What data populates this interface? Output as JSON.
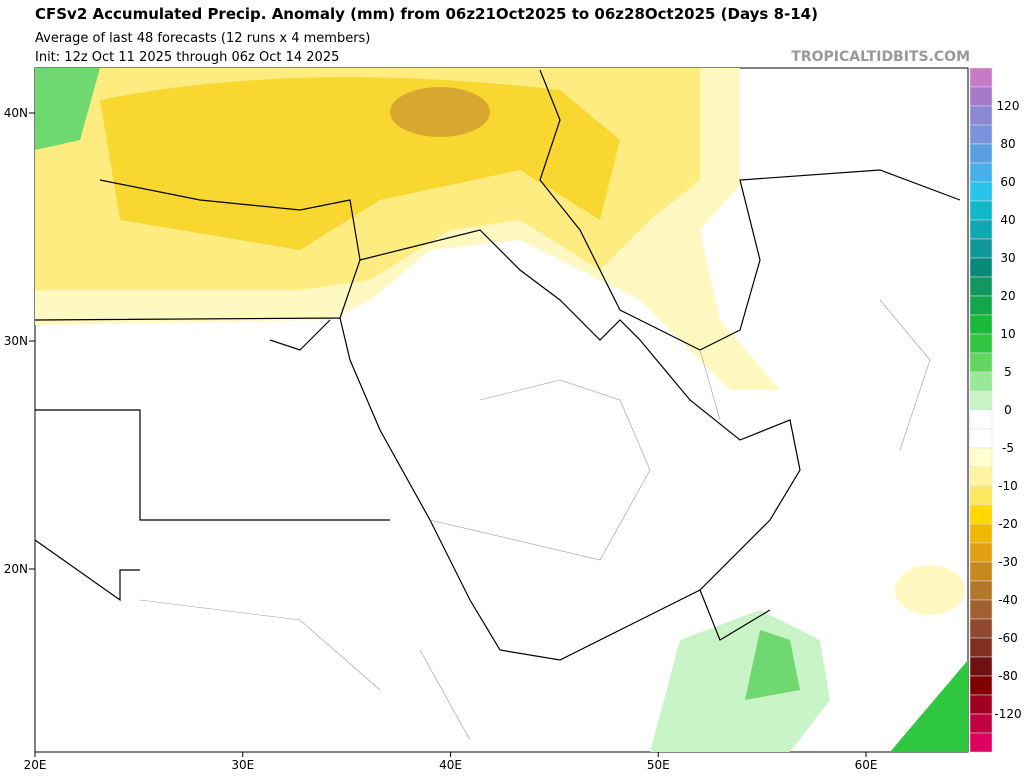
{
  "header": {
    "title": "CFSv2 Accumulated Precip. Anomaly (mm) from 06z21Oct2025 to 06z28Oct2025 (Days 8-14)",
    "subtitle": "Average of last 48 forecasts (12 runs x 4 members)",
    "init": "Init: 12z Oct 11 2025 through 06z Oct 14 2025",
    "watermark": "TROPICALTIDBITS.COM"
  },
  "map": {
    "lat_labels": [
      "40N",
      "30N",
      "20N"
    ],
    "lon_labels": [
      "20E",
      "30E",
      "40E",
      "50E",
      "60E"
    ]
  },
  "colorbar": {
    "labels": [
      "120",
      "80",
      "60",
      "40",
      "30",
      "20",
      "10",
      "5",
      "0",
      "-5",
      "-10",
      "-20",
      "-30",
      "-40",
      "-60",
      "-80",
      "-120"
    ],
    "colors": [
      "#c77bc7",
      "#a47ac8",
      "#8a8ad4",
      "#7894dc",
      "#5aa0e0",
      "#48b0e8",
      "#28c4ec",
      "#10b8c8",
      "#10a8b0",
      "#109898",
      "#088878",
      "#109860",
      "#10a848",
      "#18b838",
      "#30c840",
      "#60d860",
      "#98e898",
      "#c8f4c8",
      "#ffffff",
      "#ffffff",
      "#ffffd0",
      "#fff4a0",
      "#ffe860",
      "#ffd800",
      "#f0b800",
      "#e0a010",
      "#c88820",
      "#b07828",
      "#a06030",
      "#904830",
      "#803020",
      "#701010",
      "#800000",
      "#a00020",
      "#c00040",
      "#e00060"
    ]
  }
}
